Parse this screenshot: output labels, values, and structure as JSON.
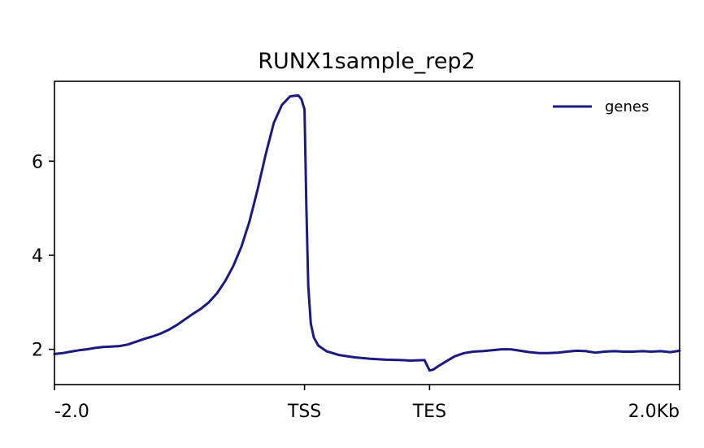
{
  "chart_data": {
    "type": "line",
    "title": "RUNX1sample_rep2",
    "xlabel": "",
    "ylabel": "",
    "xlim": [
      0,
      100
    ],
    "ylim": [
      1.25,
      7.7
    ],
    "grid": false,
    "legend_position": "top-right",
    "x_ticks": [
      {
        "value": 0,
        "label": "-2.0"
      },
      {
        "value": 40,
        "label": "TSS"
      },
      {
        "value": 60,
        "label": "TES"
      },
      {
        "value": 100,
        "label": "2.0Kb"
      }
    ],
    "y_ticks": [
      {
        "value": 2,
        "label": "2"
      },
      {
        "value": 4,
        "label": "4"
      },
      {
        "value": 6,
        "label": "6"
      }
    ],
    "series": [
      {
        "name": "genes",
        "color": "#1a1a80",
        "x": [
          0,
          1.3,
          2.6,
          3.9,
          5.2,
          6.5,
          7.8,
          9.1,
          10.4,
          11.7,
          13.0,
          14.3,
          15.6,
          16.9,
          18.2,
          19.5,
          20.8,
          22.1,
          23.4,
          24.7,
          26.0,
          27.3,
          28.6,
          29.9,
          31.2,
          32.5,
          33.8,
          35.1,
          36.4,
          37.7,
          39.0,
          39.5,
          40.0,
          40.3,
          40.6,
          41.0,
          41.5,
          42.2,
          43.5,
          45.5,
          48.0,
          50.5,
          53.0,
          55.5,
          57.0,
          59.2,
          60.0,
          60.6,
          61.5,
          62.5,
          64.0,
          65.5,
          67.0,
          68.5,
          70.0,
          71.5,
          73.0,
          74.5,
          76.0,
          77.5,
          79.0,
          80.5,
          82.0,
          83.5,
          85.0,
          86.5,
          88.0,
          89.5,
          91.0,
          92.5,
          94.0,
          95.5,
          97.0,
          98.5,
          100
        ],
        "y": [
          1.9,
          1.92,
          1.95,
          1.98,
          2.0,
          2.03,
          2.05,
          2.06,
          2.07,
          2.1,
          2.16,
          2.22,
          2.27,
          2.33,
          2.41,
          2.51,
          2.63,
          2.75,
          2.86,
          3.0,
          3.19,
          3.45,
          3.77,
          4.18,
          4.72,
          5.4,
          6.15,
          6.82,
          7.2,
          7.38,
          7.4,
          7.32,
          7.1,
          5.0,
          3.35,
          2.55,
          2.25,
          2.08,
          1.96,
          1.88,
          1.83,
          1.8,
          1.78,
          1.77,
          1.76,
          1.77,
          1.55,
          1.57,
          1.65,
          1.73,
          1.85,
          1.92,
          1.95,
          1.96,
          1.98,
          2.0,
          2.0,
          1.97,
          1.94,
          1.92,
          1.92,
          1.93,
          1.95,
          1.97,
          1.96,
          1.93,
          1.95,
          1.96,
          1.95,
          1.95,
          1.96,
          1.95,
          1.96,
          1.94,
          1.97
        ]
      }
    ]
  }
}
